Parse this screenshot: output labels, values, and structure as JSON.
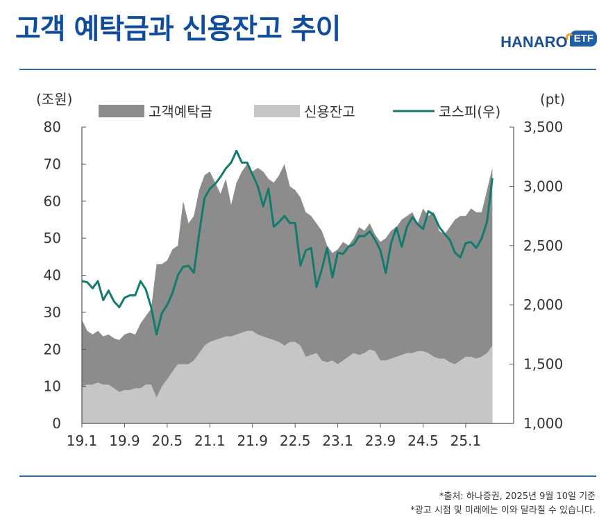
{
  "page": {
    "title": "고객 예탁금과 신용잔고 추이",
    "logo_text": "HANARO",
    "logo_badge": "ETF",
    "source_note": "*출처: 하나증권, 2025년 9월 10일 기준",
    "disclaimer": "*광고 시점 및 미래에는 이와 달라질 수 있습니다."
  },
  "colors": {
    "title": "#0f4c9c",
    "rule": "#2d6bb3",
    "deposits": "#8c8c8c",
    "credit": "#c6c6c6",
    "kospi": "#137a6e",
    "axis": "#555555",
    "text": "#333333",
    "logo": "#1b4f93"
  },
  "chart_data": {
    "type": "area",
    "left_unit": "(조원)",
    "right_unit": "(pt)",
    "legend": {
      "deposits": "고객예탁금",
      "credit": "신용잔고",
      "kospi": "코스피(우)"
    },
    "left_axis": {
      "min": 0,
      "max": 80,
      "ticks": [
        "0",
        "10",
        "20",
        "30",
        "40",
        "50",
        "60",
        "70",
        "80"
      ]
    },
    "right_axis": {
      "min": 1000,
      "max": 3500,
      "ticks": [
        "1,000",
        "1,500",
        "2,000",
        "2,500",
        "3,000",
        "3,500"
      ]
    },
    "x_range": [
      0,
      81
    ],
    "x_ticks": [
      {
        "label": "19.1",
        "x": 0
      },
      {
        "label": "19.9",
        "x": 8
      },
      {
        "label": "20.5",
        "x": 16
      },
      {
        "label": "21.1",
        "x": 24
      },
      {
        "label": "21.9",
        "x": 32
      },
      {
        "label": "22.5",
        "x": 40
      },
      {
        "label": "23.1",
        "x": 48
      },
      {
        "label": "23.9",
        "x": 56
      },
      {
        "label": "24.5",
        "x": 64
      },
      {
        "label": "25.1",
        "x": 72
      }
    ],
    "series": [
      {
        "name": "고객예탁금",
        "axis": "left",
        "points": [
          [
            0,
            28
          ],
          [
            1,
            25
          ],
          [
            2,
            24
          ],
          [
            3,
            25
          ],
          [
            4,
            23.5
          ],
          [
            5,
            24
          ],
          [
            6,
            23
          ],
          [
            7,
            22.5
          ],
          [
            8,
            24
          ],
          [
            9,
            24.5
          ],
          [
            10,
            24
          ],
          [
            11,
            27
          ],
          [
            12,
            29
          ],
          [
            13,
            31
          ],
          [
            14,
            43
          ],
          [
            15,
            43
          ],
          [
            16,
            44
          ],
          [
            17,
            47
          ],
          [
            18,
            48
          ],
          [
            19,
            60
          ],
          [
            20,
            54
          ],
          [
            21,
            56
          ],
          [
            22,
            63
          ],
          [
            23,
            67
          ],
          [
            24,
            68
          ],
          [
            25,
            65
          ],
          [
            26,
            62
          ],
          [
            27,
            66
          ],
          [
            28,
            59
          ],
          [
            29,
            65
          ],
          [
            30,
            68
          ],
          [
            31,
            70
          ],
          [
            32,
            68
          ],
          [
            33,
            69
          ],
          [
            34,
            68
          ],
          [
            35,
            66
          ],
          [
            36,
            65
          ],
          [
            37,
            67
          ],
          [
            38,
            70
          ],
          [
            39,
            64
          ],
          [
            40,
            63
          ],
          [
            41,
            61
          ],
          [
            42,
            57
          ],
          [
            43,
            56
          ],
          [
            44,
            54
          ],
          [
            45,
            52
          ],
          [
            46,
            48
          ],
          [
            47,
            46
          ],
          [
            48,
            47
          ],
          [
            49,
            49
          ],
          [
            50,
            48
          ],
          [
            51,
            50
          ],
          [
            52,
            53
          ],
          [
            53,
            52
          ],
          [
            54,
            54
          ],
          [
            55,
            51
          ],
          [
            56,
            49
          ],
          [
            57,
            50
          ],
          [
            58,
            52
          ],
          [
            59,
            53
          ],
          [
            60,
            55
          ],
          [
            61,
            56
          ],
          [
            62,
            57
          ],
          [
            63,
            54
          ],
          [
            64,
            58
          ],
          [
            65,
            56
          ],
          [
            66,
            57
          ],
          [
            67,
            52
          ],
          [
            68,
            51
          ],
          [
            69,
            53
          ],
          [
            70,
            55
          ],
          [
            71,
            56
          ],
          [
            72,
            56
          ],
          [
            73,
            58
          ],
          [
            74,
            57
          ],
          [
            75,
            57
          ],
          [
            76,
            63
          ],
          [
            77,
            69
          ]
        ]
      },
      {
        "name": "신용잔고",
        "axis": "left",
        "points": [
          [
            0,
            10
          ],
          [
            1,
            10.5
          ],
          [
            2,
            10.5
          ],
          [
            3,
            11
          ],
          [
            4,
            10.5
          ],
          [
            5,
            10.5
          ],
          [
            6,
            9.5
          ],
          [
            7,
            8.5
          ],
          [
            8,
            9
          ],
          [
            9,
            9
          ],
          [
            10,
            9.5
          ],
          [
            11,
            9.5
          ],
          [
            12,
            10.5
          ],
          [
            13,
            10.5
          ],
          [
            14,
            7
          ],
          [
            15,
            10
          ],
          [
            16,
            12
          ],
          [
            17,
            14
          ],
          [
            18,
            16
          ],
          [
            19,
            16
          ],
          [
            20,
            16
          ],
          [
            21,
            17
          ],
          [
            22,
            19
          ],
          [
            23,
            21
          ],
          [
            24,
            22
          ],
          [
            25,
            22.5
          ],
          [
            26,
            23
          ],
          [
            27,
            23.5
          ],
          [
            28,
            23.5
          ],
          [
            29,
            24
          ],
          [
            30,
            24.5
          ],
          [
            31,
            25
          ],
          [
            32,
            25
          ],
          [
            33,
            24
          ],
          [
            34,
            23.5
          ],
          [
            35,
            23
          ],
          [
            36,
            22.5
          ],
          [
            37,
            22
          ],
          [
            38,
            21
          ],
          [
            39,
            22
          ],
          [
            40,
            22
          ],
          [
            41,
            21
          ],
          [
            42,
            18
          ],
          [
            43,
            18.5
          ],
          [
            44,
            19
          ],
          [
            45,
            17
          ],
          [
            46,
            16.5
          ],
          [
            47,
            17
          ],
          [
            48,
            16
          ],
          [
            49,
            17
          ],
          [
            50,
            18
          ],
          [
            51,
            19
          ],
          [
            52,
            18.5
          ],
          [
            53,
            19
          ],
          [
            54,
            20
          ],
          [
            55,
            19.5
          ],
          [
            56,
            17
          ],
          [
            57,
            17
          ],
          [
            58,
            17.5
          ],
          [
            59,
            18
          ],
          [
            60,
            18.5
          ],
          [
            61,
            19
          ],
          [
            62,
            19
          ],
          [
            63,
            19.5
          ],
          [
            64,
            19.5
          ],
          [
            65,
            19
          ],
          [
            66,
            18
          ],
          [
            67,
            17.5
          ],
          [
            68,
            17.5
          ],
          [
            69,
            16.5
          ],
          [
            70,
            16
          ],
          [
            71,
            17
          ],
          [
            72,
            18
          ],
          [
            73,
            18
          ],
          [
            74,
            17.5
          ],
          [
            75,
            18
          ],
          [
            76,
            19
          ],
          [
            77,
            21
          ]
        ]
      },
      {
        "name": "코스피(우)",
        "axis": "right",
        "points": [
          [
            0,
            2200
          ],
          [
            1,
            2190
          ],
          [
            2,
            2140
          ],
          [
            3,
            2200
          ],
          [
            4,
            2040
          ],
          [
            5,
            2120
          ],
          [
            6,
            2030
          ],
          [
            7,
            1980
          ],
          [
            8,
            2060
          ],
          [
            9,
            2080
          ],
          [
            10,
            2080
          ],
          [
            11,
            2200
          ],
          [
            12,
            2130
          ],
          [
            13,
            1980
          ],
          [
            14,
            1750
          ],
          [
            15,
            1930
          ],
          [
            16,
            2000
          ],
          [
            17,
            2100
          ],
          [
            18,
            2250
          ],
          [
            19,
            2320
          ],
          [
            20,
            2330
          ],
          [
            21,
            2270
          ],
          [
            22,
            2600
          ],
          [
            23,
            2900
          ],
          [
            24,
            2980
          ],
          [
            25,
            3020
          ],
          [
            26,
            3080
          ],
          [
            27,
            3150
          ],
          [
            28,
            3200
          ],
          [
            29,
            3300
          ],
          [
            30,
            3200
          ],
          [
            31,
            3200
          ],
          [
            32,
            3100
          ],
          [
            33,
            3000
          ],
          [
            34,
            2830
          ],
          [
            35,
            2980
          ],
          [
            36,
            2660
          ],
          [
            37,
            2700
          ],
          [
            38,
            2750
          ],
          [
            39,
            2690
          ],
          [
            40,
            2690
          ],
          [
            41,
            2330
          ],
          [
            42,
            2460
          ],
          [
            43,
            2480
          ],
          [
            44,
            2150
          ],
          [
            45,
            2300
          ],
          [
            46,
            2480
          ],
          [
            47,
            2230
          ],
          [
            48,
            2440
          ],
          [
            49,
            2430
          ],
          [
            50,
            2490
          ],
          [
            51,
            2510
          ],
          [
            52,
            2580
          ],
          [
            53,
            2580
          ],
          [
            54,
            2620
          ],
          [
            55,
            2550
          ],
          [
            56,
            2460
          ],
          [
            57,
            2270
          ],
          [
            58,
            2520
          ],
          [
            59,
            2650
          ],
          [
            60,
            2490
          ],
          [
            61,
            2660
          ],
          [
            62,
            2740
          ],
          [
            63,
            2680
          ],
          [
            64,
            2640
          ],
          [
            65,
            2790
          ],
          [
            66,
            2760
          ],
          [
            67,
            2660
          ],
          [
            68,
            2600
          ],
          [
            69,
            2550
          ],
          [
            70,
            2440
          ],
          [
            71,
            2400
          ],
          [
            72,
            2520
          ],
          [
            73,
            2530
          ],
          [
            74,
            2480
          ],
          [
            75,
            2560
          ],
          [
            76,
            2700
          ],
          [
            77,
            3070
          ]
        ]
      }
    ]
  }
}
